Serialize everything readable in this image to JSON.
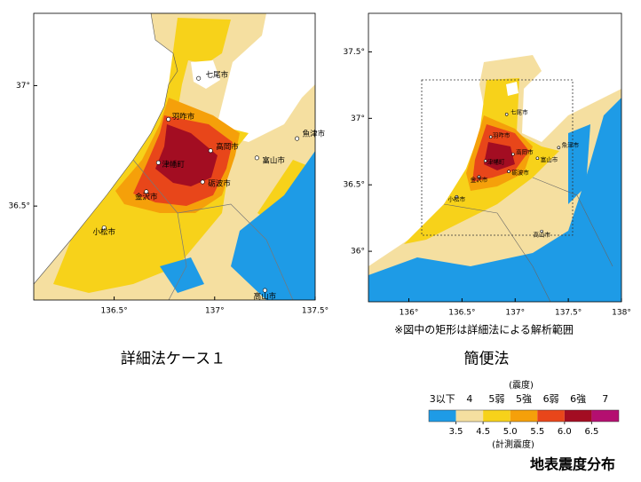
{
  "left_map": {
    "caption": "詳細法ケース１",
    "xlim": [
      136.1,
      137.5
    ],
    "ylim": [
      36.11,
      37.3
    ],
    "xticks": [
      {
        "value": 136.5,
        "label": "136.5°"
      },
      {
        "value": 137,
        "label": "137°"
      },
      {
        "value": 137.5,
        "label": "137.5°"
      }
    ],
    "yticks": [
      {
        "value": 37,
        "label": "37°"
      },
      {
        "value": 36.5,
        "label": "36.5°"
      }
    ],
    "cities": [
      "七尾市",
      "羽咋市",
      "魚津市",
      "高岡市",
      "富山市",
      "津幡町",
      "砺波市",
      "金沢市",
      "小松市",
      "高山市"
    ]
  },
  "right_map": {
    "caption": "簡便法",
    "note": "※図中の矩形は詳細法による解析範囲",
    "xlim": [
      135.62,
      138
    ],
    "ylim": [
      35.62,
      37.79
    ],
    "xticks": [
      {
        "value": 136,
        "label": "136°"
      },
      {
        "value": 136.5,
        "label": "136.5°"
      },
      {
        "value": 137,
        "label": "137°"
      },
      {
        "value": 137.5,
        "label": "137.5°"
      },
      {
        "value": 138,
        "label": "138°"
      }
    ],
    "yticks": [
      {
        "value": 37.5,
        "label": "37.5°"
      },
      {
        "value": 37,
        "label": "37°"
      },
      {
        "value": 36.5,
        "label": "36.5°"
      },
      {
        "value": 36,
        "label": "36°"
      }
    ],
    "cities": [
      "七尾市",
      "羽咋市",
      "魚津市",
      "高岡市",
      "富山市",
      "津幡町",
      "砺波市",
      "金沢市",
      "小松市",
      "高山市"
    ]
  },
  "legend": {
    "title": "(震度)",
    "subtitle": "(計測震度)",
    "classes": [
      "3以下",
      "4",
      "5弱",
      "5強",
      "6弱",
      "6強",
      "7"
    ],
    "colors": [
      "#1e9be6",
      "#f5dfa0",
      "#f7d21a",
      "#f5a00a",
      "#e8461a",
      "#a30d22",
      "#b40f70"
    ],
    "boundaries": [
      3.5,
      4.5,
      5.0,
      5.5,
      6.0,
      6.5
    ],
    "boundary_labels": [
      "3.5",
      "4.5",
      "5.0",
      "5.5",
      "6.0",
      "6.5"
    ]
  },
  "title": "地表震度分布"
}
